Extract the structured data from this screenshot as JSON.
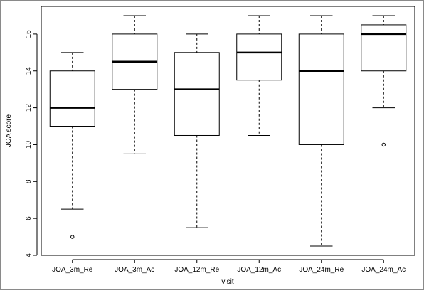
{
  "chart_data": {
    "type": "boxplot",
    "xlabel": "visit",
    "ylabel": "JOA score",
    "ylim": [
      4,
      17.5
    ],
    "yticks": [
      4,
      6,
      8,
      10,
      12,
      14,
      16
    ],
    "categories": [
      "JOA_3m_Re",
      "JOA_3m_Ac",
      "JOA_12m_Re",
      "JOA_12m_Ac",
      "JOA_24m_Re",
      "JOA_24m_Ac"
    ],
    "boxes": [
      {
        "label": "JOA_3m_Re",
        "whisker_low": 6.5,
        "q1": 11,
        "median": 12,
        "q3": 14,
        "whisker_high": 15,
        "outliers": [
          5
        ]
      },
      {
        "label": "JOA_3m_Ac",
        "whisker_low": 9.5,
        "q1": 13,
        "median": 14.5,
        "q3": 16,
        "whisker_high": 17,
        "outliers": []
      },
      {
        "label": "JOA_12m_Re",
        "whisker_low": 5.5,
        "q1": 10.5,
        "median": 13,
        "q3": 15,
        "whisker_high": 16,
        "outliers": []
      },
      {
        "label": "JOA_12m_Ac",
        "whisker_low": 10.5,
        "q1": 13.5,
        "median": 15,
        "q3": 16,
        "whisker_high": 17,
        "outliers": []
      },
      {
        "label": "JOA_24m_Re",
        "whisker_low": 4.5,
        "q1": 10,
        "median": 14,
        "q3": 16,
        "whisker_high": 17,
        "outliers": []
      },
      {
        "label": "JOA_24m_Ac",
        "whisker_low": 12,
        "q1": 14,
        "median": 16,
        "q3": 16.5,
        "whisker_high": 17,
        "outliers": [
          10
        ]
      }
    ]
  }
}
